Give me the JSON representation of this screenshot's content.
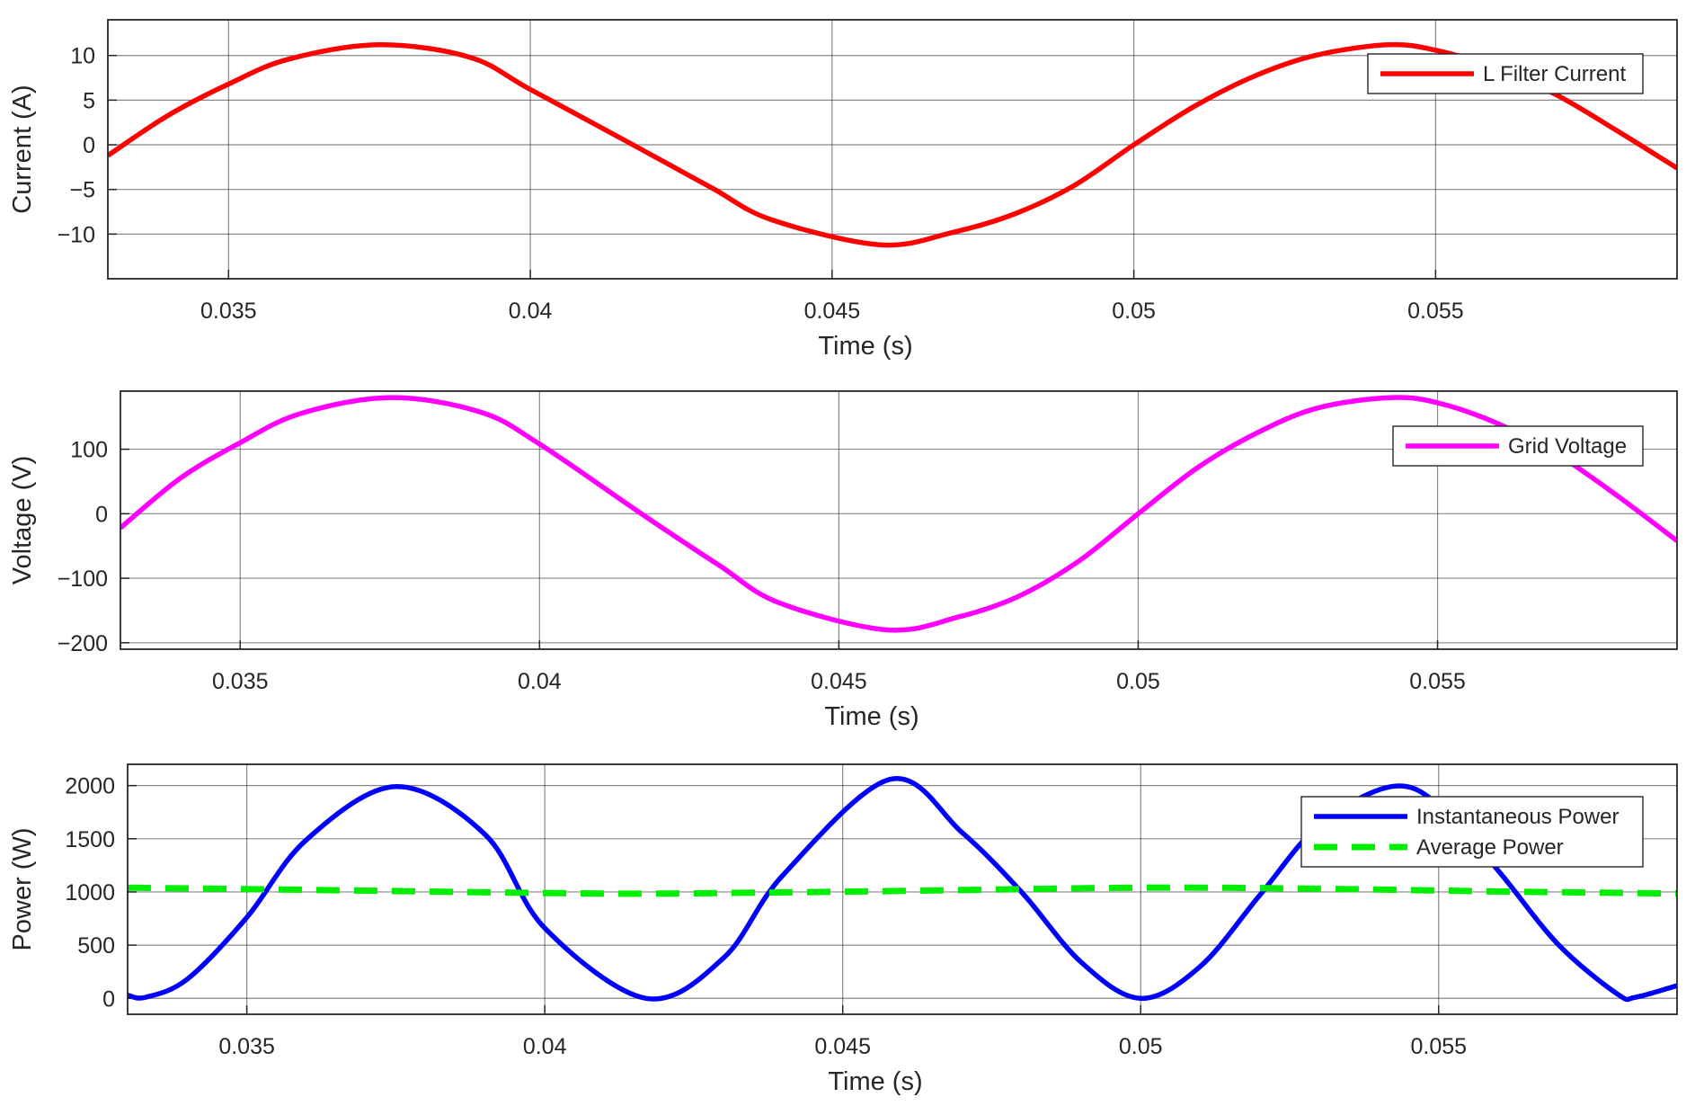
{
  "colors": {
    "current": "#ff0000",
    "voltage": "#ff00ff",
    "instantaneous_power": "#0000ff",
    "average_power": "#00ee00",
    "grid": "#262626",
    "axes": "#262626"
  },
  "chart_data": [
    {
      "type": "line",
      "xlabel": "Time (s)",
      "ylabel": "Current (A)",
      "xlim": [
        0.033,
        0.059
      ],
      "ylim": [
        -15,
        14
      ],
      "xticks": [
        0.035,
        0.04,
        0.045,
        0.05,
        0.055
      ],
      "xtick_labels": [
        "0.035",
        "0.04",
        "0.045",
        "0.05",
        "0.055"
      ],
      "yticks": [
        10,
        5,
        0,
        -5,
        -10
      ],
      "ytick_labels": [
        "10",
        "5",
        "0",
        "−5",
        "−10"
      ],
      "grid": true,
      "legend_position": "top-right",
      "series": [
        {
          "name": "L Filter Current",
          "color": "#ff0000",
          "style": "solid",
          "x": [
            0.033,
            0.034,
            0.035,
            0.036,
            0.0375,
            0.039,
            0.04,
            0.0417,
            0.043,
            0.044,
            0.0458,
            0.047,
            0.048,
            0.049,
            0.05,
            0.051,
            0.052,
            0.053,
            0.0542,
            0.055,
            0.056,
            0.057,
            0.058,
            0.059
          ],
          "y": [
            -1.2,
            3.3,
            6.8,
            9.6,
            11.2,
            9.8,
            6.2,
            0,
            -4.8,
            -8.4,
            -11.2,
            -9.8,
            -7.8,
            -4.6,
            0,
            4.3,
            7.7,
            10.0,
            11.2,
            10.6,
            8.6,
            5.6,
            1.6,
            -2.6
          ]
        }
      ]
    },
    {
      "type": "line",
      "xlabel": "Time (s)",
      "ylabel": "Voltage (V)",
      "xlim": [
        0.033,
        0.059
      ],
      "ylim": [
        -210,
        190
      ],
      "xticks": [
        0.035,
        0.04,
        0.045,
        0.05,
        0.055
      ],
      "xtick_labels": [
        "0.035",
        "0.04",
        "0.045",
        "0.05",
        "0.055"
      ],
      "yticks": [
        100,
        0,
        -100,
        -200
      ],
      "ytick_labels": [
        "100",
        "0",
        "−100",
        "−200"
      ],
      "grid": true,
      "legend_position": "top-right",
      "series": [
        {
          "name": "Grid Voltage",
          "color": "#ff00ff",
          "style": "solid",
          "x": [
            0.033,
            0.034,
            0.035,
            0.036,
            0.0375,
            0.039,
            0.04,
            0.0417,
            0.043,
            0.044,
            0.0458,
            0.047,
            0.048,
            0.049,
            0.05,
            0.051,
            0.052,
            0.053,
            0.0542,
            0.055,
            0.056,
            0.057,
            0.058,
            0.059
          ],
          "y": [
            -22,
            55,
            110,
            155,
            180,
            158,
            108,
            0,
            -80,
            -138,
            -180,
            -160,
            -128,
            -74,
            0,
            72,
            126,
            164,
            180,
            172,
            140,
            92,
            28,
            -42
          ]
        }
      ]
    },
    {
      "type": "line",
      "xlabel": "Time (s)",
      "ylabel": "Power (W)",
      "xlim": [
        0.033,
        0.059
      ],
      "ylim": [
        -150,
        2200
      ],
      "xticks": [
        0.035,
        0.04,
        0.045,
        0.05,
        0.055
      ],
      "xtick_labels": [
        "0.035",
        "0.04",
        "0.045",
        "0.05",
        "0.055"
      ],
      "yticks": [
        2000,
        1500,
        1000,
        500,
        0
      ],
      "ytick_labels": [
        "2000",
        "1500",
        "1000",
        "500",
        "0"
      ],
      "grid": true,
      "legend_position": "top-right",
      "series": [
        {
          "name": "Instantaneous Power",
          "color": "#0000ff",
          "style": "solid",
          "x": [
            0.033,
            0.0333,
            0.034,
            0.035,
            0.036,
            0.0375,
            0.039,
            0.04,
            0.0417,
            0.043,
            0.044,
            0.0458,
            0.047,
            0.048,
            0.049,
            0.05,
            0.051,
            0.052,
            0.053,
            0.0542,
            0.055,
            0.056,
            0.057,
            0.058,
            0.0583,
            0.059
          ],
          "y": [
            30,
            10,
            180,
            760,
            1490,
            1990,
            1540,
            660,
            0,
            380,
            1160,
            2060,
            1560,
            1000,
            340,
            0,
            300,
            970,
            1630,
            1990,
            1820,
            1200,
            510,
            40,
            10,
            120
          ]
        },
        {
          "name": "Average Power",
          "color": "#00ee00",
          "style": "dashed",
          "x": [
            0.033,
            0.036,
            0.04,
            0.042,
            0.046,
            0.05,
            0.053,
            0.056,
            0.059
          ],
          "y": [
            1040,
            1020,
            990,
            985,
            1010,
            1040,
            1030,
            1005,
            985
          ]
        }
      ]
    }
  ]
}
